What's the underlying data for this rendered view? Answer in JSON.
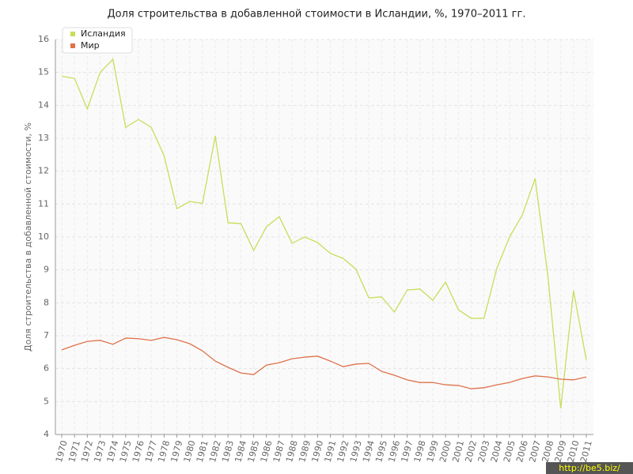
{
  "chart_data": {
    "type": "line",
    "title": "Доля строительства в добавленной стоимости в Исландии, %, 1970–2011 гг.",
    "ylabel": "Доля строительства в добавленной стоимости, %",
    "watermark": "http://be5.biz/",
    "x": [
      1970,
      1971,
      1972,
      1973,
      1974,
      1975,
      1976,
      1977,
      1978,
      1979,
      1980,
      1981,
      1982,
      1983,
      1984,
      1985,
      1986,
      1987,
      1988,
      1989,
      1990,
      1991,
      1992,
      1993,
      1994,
      1995,
      1996,
      1997,
      1998,
      1999,
      2000,
      2001,
      2002,
      2003,
      2004,
      2005,
      2006,
      2007,
      2008,
      2009,
      2010,
      2011
    ],
    "xlim": [
      1970,
      2011
    ],
    "ylim": [
      4,
      16
    ],
    "yticks": [
      4,
      5,
      6,
      7,
      8,
      9,
      10,
      11,
      12,
      13,
      14,
      15,
      16
    ],
    "grid": true,
    "legend": "top-left",
    "series": [
      {
        "name": "Исландия",
        "color": "#c5df5a",
        "values": [
          14.88,
          14.82,
          13.89,
          15.0,
          15.4,
          13.33,
          13.57,
          13.33,
          12.47,
          10.86,
          11.08,
          11.02,
          13.07,
          10.43,
          10.41,
          9.59,
          10.31,
          10.62,
          9.81,
          10.0,
          9.83,
          9.5,
          9.35,
          9.02,
          8.15,
          8.18,
          7.72,
          8.39,
          8.42,
          8.08,
          8.63,
          7.79,
          7.53,
          7.53,
          9.04,
          10.0,
          10.67,
          11.78,
          8.8,
          4.79,
          8.37,
          6.26
        ]
      },
      {
        "name": "Мир",
        "color": "#e0714b",
        "values": [
          6.57,
          6.71,
          6.83,
          6.86,
          6.74,
          6.93,
          6.91,
          6.86,
          6.95,
          6.88,
          6.76,
          6.54,
          6.23,
          6.04,
          5.87,
          5.82,
          6.11,
          6.18,
          6.3,
          6.35,
          6.38,
          6.23,
          6.06,
          6.14,
          6.16,
          5.92,
          5.8,
          5.66,
          5.58,
          5.58,
          5.51,
          5.49,
          5.39,
          5.42,
          5.51,
          5.58,
          5.7,
          5.78,
          5.75,
          5.68,
          5.66,
          5.75
        ]
      }
    ]
  }
}
